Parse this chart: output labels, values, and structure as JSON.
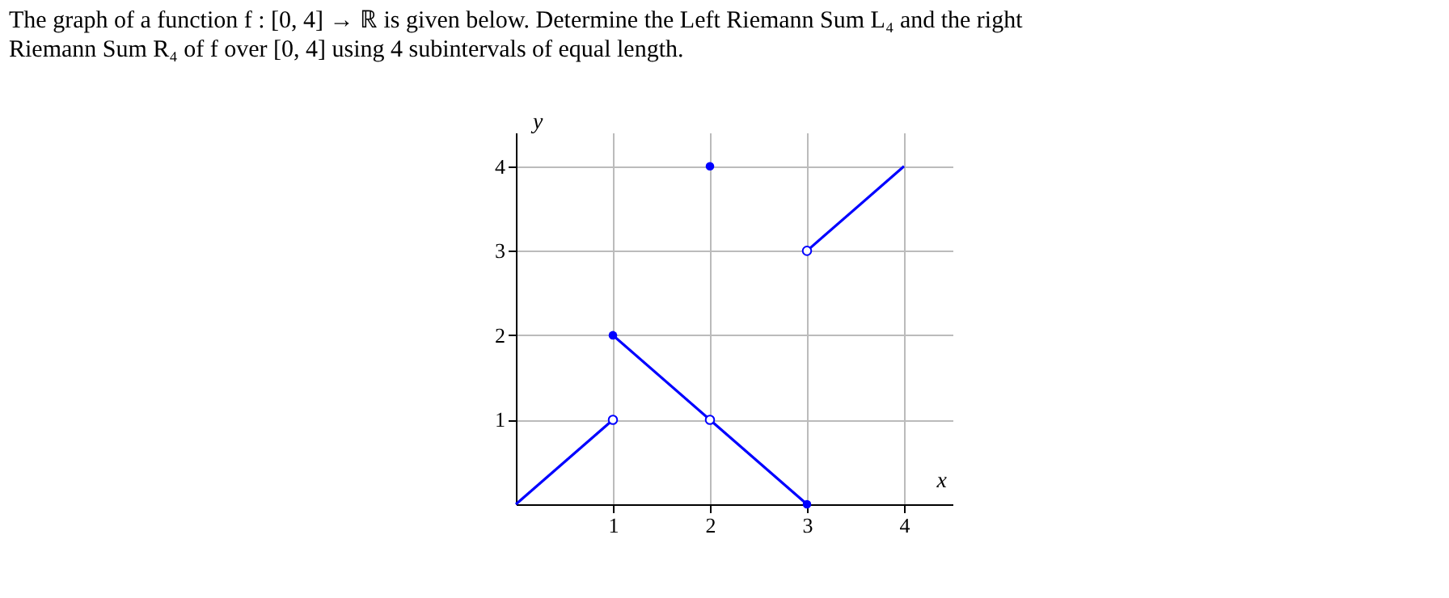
{
  "chart_data": {
    "type": "line",
    "title": "The graph of a function f : [0, 4] → ℝ is given below. Determine the Left Riemann Sum L₄ and the right Riemann Sum R₄ of f over [0, 4] using 4 subintervals of equal length.",
    "xlabel": "x",
    "ylabel": "y",
    "xlim": [
      0,
      4.5
    ],
    "ylim": [
      0,
      4.4
    ],
    "xticks": [
      1,
      2,
      3,
      4
    ],
    "yticks": [
      1,
      2,
      3,
      4
    ],
    "grid": true,
    "legend": false,
    "series": [
      {
        "color": "#0000ff",
        "x": [
          0,
          1
        ],
        "values": [
          0,
          1
        ]
      },
      {
        "color": "#0000ff",
        "x": [
          1,
          2,
          3
        ],
        "values": [
          2,
          1,
          0
        ]
      },
      {
        "color": "#0000ff",
        "x": [
          3,
          4
        ],
        "values": [
          3,
          4
        ]
      },
      {
        "type": "scatter",
        "color": "#0000ff",
        "marker": "circle",
        "x": [
          1,
          2,
          3
        ],
        "values": [
          2,
          4,
          0
        ]
      },
      {
        "type": "scatter",
        "color": "#0000ff",
        "marker": "circle",
        "x": [
          1,
          2,
          3
        ],
        "values": [
          1,
          1,
          3
        ]
      }
    ]
  }
}
